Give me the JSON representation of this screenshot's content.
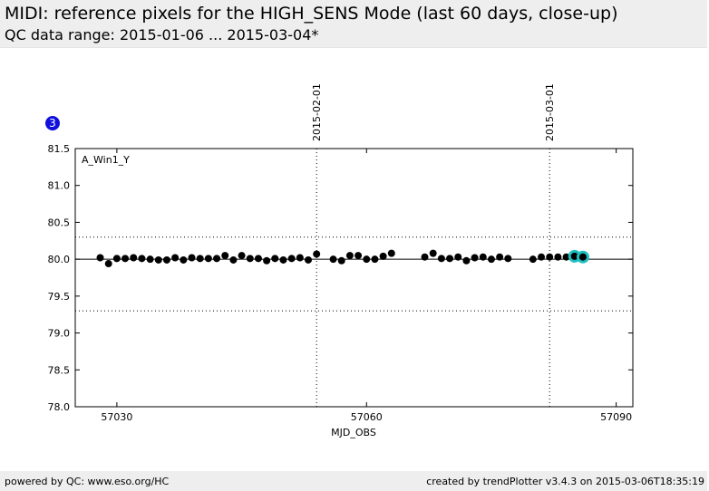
{
  "header": {
    "title": "MIDI: reference pixels for the HIGH_SENS Mode (last 60 days, close-up)",
    "subtitle": "QC data range: 2015-01-06 ... 2015-03-04*"
  },
  "footer": {
    "left": "powered by QC: www.eso.org/HC",
    "right": "created by trendPlotter v3.4.3 on 2015-03-06T18:35:19"
  },
  "badge": {
    "label": "3",
    "color": "#1010dd"
  },
  "colors": {
    "points": "#000000",
    "latest": "#1fbfbf"
  },
  "chart_data": {
    "type": "scatter",
    "panel_label": "A_Win1_Y",
    "xlabel": "MJD_OBS",
    "ylabel": "",
    "xlim": [
      57025,
      57092
    ],
    "ylim": [
      78.0,
      81.5
    ],
    "xticks": [
      57030,
      57060,
      57090
    ],
    "xtick_labels": [
      "57030",
      "57060",
      "57090"
    ],
    "yticks": [
      78.0,
      78.5,
      79.0,
      79.5,
      80.0,
      80.5,
      81.0,
      81.5
    ],
    "ytick_labels": [
      "78.0",
      "78.5",
      "79.0",
      "79.5",
      "80.0",
      "80.5",
      "81.0",
      "81.5"
    ],
    "reference_line": 80.0,
    "threshold_lines": [
      80.3,
      79.3
    ],
    "date_markers": [
      {
        "x": 57054,
        "label": "2015-02-01"
      },
      {
        "x": 57082,
        "label": "2015-03-01"
      }
    ],
    "grid": false,
    "points": [
      [
        57028.0,
        80.02
      ],
      [
        57029.0,
        79.94
      ],
      [
        57030.0,
        80.01
      ],
      [
        57031.0,
        80.01
      ],
      [
        57032.0,
        80.02
      ],
      [
        57033.0,
        80.01
      ],
      [
        57034.0,
        80.0
      ],
      [
        57035.0,
        79.99
      ],
      [
        57036.0,
        79.99
      ],
      [
        57037.0,
        80.02
      ],
      [
        57038.0,
        79.99
      ],
      [
        57039.0,
        80.02
      ],
      [
        57040.0,
        80.01
      ],
      [
        57041.0,
        80.01
      ],
      [
        57042.0,
        80.01
      ],
      [
        57043.0,
        80.05
      ],
      [
        57044.0,
        79.99
      ],
      [
        57045.0,
        80.05
      ],
      [
        57046.0,
        80.01
      ],
      [
        57047.0,
        80.01
      ],
      [
        57048.0,
        79.98
      ],
      [
        57049.0,
        80.01
      ],
      [
        57050.0,
        79.99
      ],
      [
        57051.0,
        80.01
      ],
      [
        57052.0,
        80.02
      ],
      [
        57053.0,
        79.99
      ],
      [
        57054.0,
        80.07
      ],
      [
        57056.0,
        80.0
      ],
      [
        57057.0,
        79.98
      ],
      [
        57058.0,
        80.05
      ],
      [
        57059.0,
        80.05
      ],
      [
        57060.0,
        80.0
      ],
      [
        57061.0,
        80.0
      ],
      [
        57062.0,
        80.04
      ],
      [
        57063.0,
        80.08
      ],
      [
        57067.0,
        80.03
      ],
      [
        57068.0,
        80.08
      ],
      [
        57069.0,
        80.01
      ],
      [
        57070.0,
        80.01
      ],
      [
        57071.0,
        80.03
      ],
      [
        57072.0,
        79.98
      ],
      [
        57073.0,
        80.02
      ],
      [
        57074.0,
        80.03
      ],
      [
        57075.0,
        80.0
      ],
      [
        57076.0,
        80.03
      ],
      [
        57077.0,
        80.01
      ],
      [
        57080.0,
        80.0
      ],
      [
        57081.0,
        80.03
      ],
      [
        57082.0,
        80.03
      ],
      [
        57083.0,
        80.03
      ],
      [
        57084.0,
        80.03
      ],
      [
        57085.0,
        80.04
      ],
      [
        57086.0,
        80.03
      ]
    ],
    "latest_points": [
      [
        57085.0,
        80.04
      ],
      [
        57086.0,
        80.03
      ]
    ]
  }
}
